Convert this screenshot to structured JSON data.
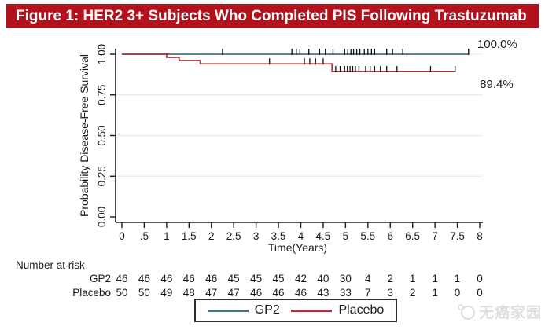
{
  "banner": {
    "title": "Figure 1: HER2 3+ Subjects Who Completed PIS Following Trastuzumab",
    "bg": "#b2121b",
    "fg": "#ffffff"
  },
  "legend": {
    "items": [
      {
        "label": "GP2",
        "color": "#4a7083"
      },
      {
        "label": "Placebo",
        "color": "#a03a40"
      }
    ]
  },
  "watermark": {
    "text": "无癌家园"
  },
  "chart_data": {
    "type": "line",
    "subtype": "kaplan-meier-step",
    "title": "Figure 1: HER2 3+ Subjects Who Completed PIS Following Trastuzumab",
    "xlabel": "Time(Years)",
    "ylabel": "Probability Disease-Free Survival",
    "xlim": [
      0,
      8
    ],
    "ylim": [
      0,
      1.0
    ],
    "grid": "faint horizontal gridlines at y ticks",
    "legend_position": "bottom center boxed",
    "xticks": {
      "values": [
        0,
        0.5,
        1,
        1.5,
        2,
        2.5,
        3,
        3.5,
        4,
        4.5,
        5,
        5.5,
        6,
        6.5,
        7,
        7.5,
        8
      ],
      "labels": [
        "0",
        ".5",
        "1",
        "1.5",
        "2",
        "2.5",
        "3",
        "3.5",
        "4",
        "4.5",
        "5",
        "5.5",
        "6",
        "6.5",
        "7",
        "7.5",
        "8"
      ]
    },
    "yticks": {
      "values": [
        0,
        0.25,
        0.5,
        0.75,
        1.0
      ],
      "labels": [
        "0.00",
        "0.25",
        "0.50",
        "0.75",
        "1.00"
      ]
    },
    "series": [
      {
        "name": "GP2",
        "color": "#4a7083",
        "end_label": "100.0%",
        "steps": [
          [
            0,
            1.0
          ],
          [
            7.75,
            1.0
          ]
        ],
        "censors": [
          [
            2.25,
            1.0
          ],
          [
            3.8,
            1.0
          ],
          [
            3.9,
            1.0
          ],
          [
            3.98,
            1.0
          ],
          [
            4.18,
            1.0
          ],
          [
            4.42,
            1.0
          ],
          [
            4.55,
            1.0
          ],
          [
            4.72,
            1.0
          ],
          [
            4.98,
            1.0
          ],
          [
            5.05,
            1.0
          ],
          [
            5.12,
            1.0
          ],
          [
            5.18,
            1.0
          ],
          [
            5.25,
            1.0
          ],
          [
            5.32,
            1.0
          ],
          [
            5.42,
            1.0
          ],
          [
            5.5,
            1.0
          ],
          [
            5.58,
            1.0
          ],
          [
            5.65,
            1.0
          ],
          [
            5.92,
            1.0
          ],
          [
            6.05,
            1.0
          ],
          [
            6.28,
            1.0
          ],
          [
            7.75,
            1.0
          ]
        ]
      },
      {
        "name": "Placebo",
        "color": "#a03a40",
        "end_label": "89.4%",
        "steps": [
          [
            0,
            1.0
          ],
          [
            1.0,
            1.0
          ],
          [
            1.0,
            0.981
          ],
          [
            1.28,
            0.981
          ],
          [
            1.28,
            0.961
          ],
          [
            1.75,
            0.961
          ],
          [
            1.75,
            0.941
          ],
          [
            4.7,
            0.941
          ],
          [
            4.7,
            0.894
          ],
          [
            7.45,
            0.894
          ]
        ],
        "censors": [
          [
            3.3,
            0.941
          ],
          [
            4.08,
            0.941
          ],
          [
            4.2,
            0.941
          ],
          [
            4.33,
            0.941
          ],
          [
            4.5,
            0.941
          ],
          [
            4.78,
            0.894
          ],
          [
            4.88,
            0.894
          ],
          [
            4.98,
            0.894
          ],
          [
            5.04,
            0.894
          ],
          [
            5.1,
            0.894
          ],
          [
            5.16,
            0.894
          ],
          [
            5.22,
            0.894
          ],
          [
            5.3,
            0.894
          ],
          [
            5.45,
            0.894
          ],
          [
            5.55,
            0.894
          ],
          [
            5.65,
            0.894
          ],
          [
            5.78,
            0.894
          ],
          [
            5.92,
            0.894
          ],
          [
            6.15,
            0.894
          ],
          [
            6.9,
            0.894
          ],
          [
            7.45,
            0.894
          ]
        ]
      }
    ],
    "risk_table": {
      "title": "Number at risk",
      "times": [
        0,
        0.5,
        1,
        1.5,
        2,
        2.5,
        3,
        3.5,
        4,
        4.5,
        5,
        5.5,
        6,
        6.5,
        7,
        7.5,
        8
      ],
      "rows": [
        {
          "label": "GP2",
          "counts": [
            46,
            46,
            46,
            46,
            46,
            45,
            45,
            45,
            42,
            40,
            30,
            4,
            2,
            1,
            1,
            1,
            0
          ]
        },
        {
          "label": "Placebo",
          "counts": [
            50,
            50,
            49,
            48,
            47,
            47,
            46,
            46,
            46,
            43,
            33,
            7,
            3,
            2,
            1,
            0,
            0
          ]
        }
      ]
    }
  }
}
